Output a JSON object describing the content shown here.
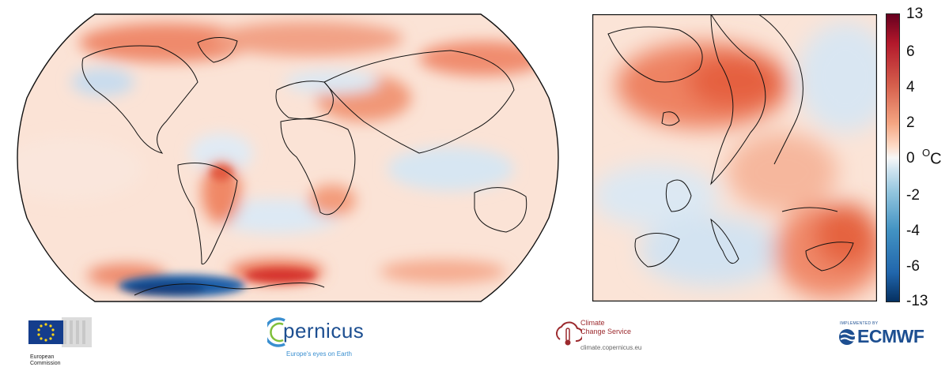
{
  "colorbar": {
    "unit_prefix": "0 ",
    "unit_deg": "O",
    "unit_c": "C",
    "ticks": [
      "13",
      "6",
      "4",
      "2",
      "0",
      "-2",
      "-4",
      "-6",
      "-13"
    ]
  },
  "colors": {
    "warm_max": "#67001f",
    "warm": "#d6604d",
    "neutral": "#f7f7f7",
    "cool": "#4393c3",
    "cool_max": "#053061"
  },
  "logos": {
    "eu_line1": "European",
    "eu_line2": "Commission",
    "copernicus_name": "pernicus",
    "copernicus_tagline": "Europe's eyes on Earth",
    "c3s_line1": "Climate",
    "c3s_line2": "Change Service",
    "c3s_url": "climate.copernicus.eu",
    "ecmwf_small": "IMPLEMENTED BY",
    "ecmwf_name": "ECMWF"
  }
}
